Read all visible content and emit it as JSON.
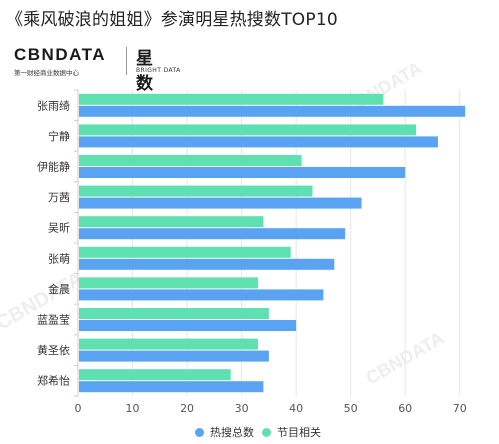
{
  "title": "《乘风破浪的姐姐》参演明星热搜数TOP10",
  "brand": {
    "logo_text": "CBNDATA",
    "logo_sub": "第一财经商业数据中心",
    "product_text": "星数",
    "product_sub": "BRIGHT DATA",
    "watermark_texts": [
      "CBNDATA",
      "CBNDATA",
      "CBNDATA"
    ]
  },
  "colors": {
    "hot": "#5aa3f3",
    "program": "#5fe0b1",
    "grid": "#e6e6e6",
    "axis": "#cccccc"
  },
  "chart_data": {
    "type": "bar",
    "orientation": "horizontal",
    "title": "《乘风破浪的姐姐》参演明星热搜数TOP10",
    "categories": [
      "张雨绮",
      "宁静",
      "伊能静",
      "万茜",
      "吴昕",
      "张萌",
      "金晨",
      "蓝盈莹",
      "黄圣依",
      "郑希怡"
    ],
    "series": [
      {
        "name": "节目相关",
        "values": [
          56,
          62,
          41,
          43,
          34,
          39,
          33,
          35,
          33,
          28
        ]
      },
      {
        "name": "热搜总数",
        "values": [
          71,
          66,
          60,
          52,
          49,
          47,
          45,
          40,
          35,
          34
        ]
      }
    ],
    "xlim": [
      0,
      75
    ],
    "xticks": [
      0,
      10,
      20,
      30,
      40,
      50,
      60,
      70
    ],
    "grid": true,
    "legend_position": "bottom-center",
    "legend": [
      "热搜总数",
      "节目相关"
    ]
  }
}
